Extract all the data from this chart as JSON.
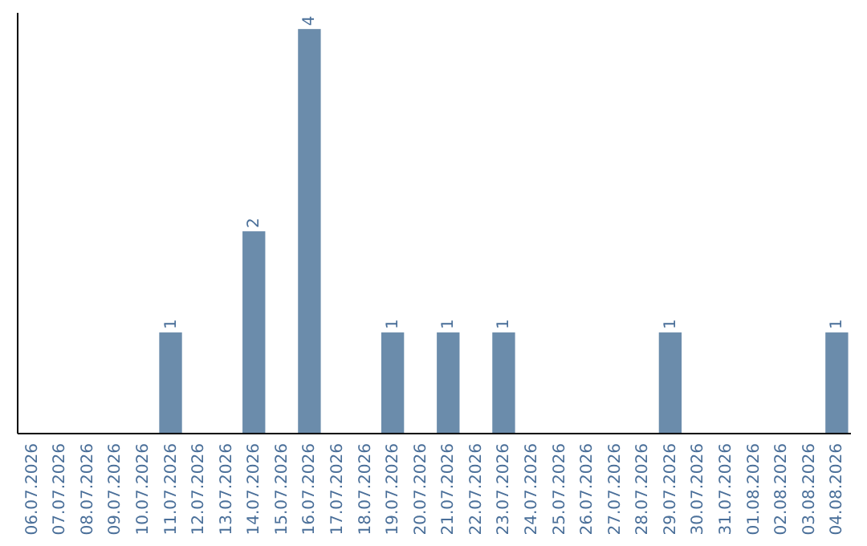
{
  "chart_data": {
    "type": "bar",
    "categories": [
      "06.07.2026",
      "07.07.2026",
      "08.07.2026",
      "09.07.2026",
      "10.07.2026",
      "11.07.2026",
      "12.07.2026",
      "13.07.2026",
      "14.07.2026",
      "15.07.2026",
      "16.07.2026",
      "17.07.2026",
      "18.07.2026",
      "19.07.2026",
      "20.07.2026",
      "21.07.2026",
      "22.07.2026",
      "23.07.2026",
      "24.07.2026",
      "25.07.2026",
      "26.07.2026",
      "27.07.2026",
      "28.07.2026",
      "29.07.2026",
      "30.07.2026",
      "31.07.2026",
      "01.08.2026",
      "02.08.2026",
      "03.08.2026",
      "04.08.2026"
    ],
    "values": [
      0,
      0,
      0,
      0,
      0,
      1,
      0,
      0,
      2,
      0,
      4,
      0,
      0,
      1,
      0,
      1,
      0,
      1,
      0,
      0,
      0,
      0,
      0,
      1,
      0,
      0,
      0,
      0,
      0,
      1
    ],
    "value_labels": [
      null,
      null,
      null,
      null,
      null,
      "1",
      null,
      null,
      "2",
      null,
      "4",
      null,
      null,
      "1",
      null,
      "1",
      null,
      "1",
      null,
      null,
      null,
      null,
      null,
      "1",
      null,
      null,
      null,
      null,
      null,
      "1"
    ],
    "color": "#6b8cab"
  }
}
